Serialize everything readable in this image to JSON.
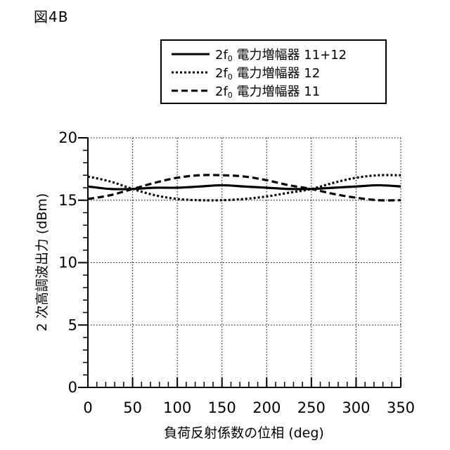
{
  "figure_label": "図4B",
  "chart_data": {
    "type": "line",
    "xlabel": "負荷反射係数の位相 (deg)",
    "ylabel": "2 次高調波出力 (dBm)",
    "xlim": [
      0,
      350
    ],
    "ylim": [
      0,
      20
    ],
    "x_ticks": [
      "0",
      "50",
      "100",
      "150",
      "200",
      "250",
      "300",
      "350"
    ],
    "y_ticks": [
      "0",
      "5",
      "10",
      "15",
      "20"
    ],
    "grid": true,
    "legend_position": "top-right",
    "x": [
      0,
      25,
      50,
      75,
      100,
      125,
      150,
      175,
      200,
      225,
      250,
      275,
      300,
      325,
      350
    ],
    "series": [
      {
        "name": "2f0 電力増幅器 11+12",
        "name_base": "2f",
        "name_sub": "0",
        "name_rest": " 電力増幅器 11+12",
        "style": "solid",
        "values": [
          16.1,
          15.9,
          15.9,
          16.0,
          16.0,
          16.1,
          16.2,
          16.1,
          16.0,
          15.9,
          15.9,
          16.0,
          16.1,
          16.2,
          16.1
        ]
      },
      {
        "name": "2f0 電力増幅器 12",
        "name_base": "2f",
        "name_sub": "0",
        "name_rest": " 電力増幅器 12",
        "style": "dotted",
        "values": [
          16.9,
          16.5,
          15.9,
          15.4,
          15.1,
          15.0,
          15.0,
          15.1,
          15.3,
          15.6,
          15.9,
          16.4,
          16.8,
          17.0,
          17.0
        ]
      },
      {
        "name": "2f0 電力増幅器 11",
        "name_base": "2f",
        "name_sub": "0",
        "name_rest": " 電力増幅器 11",
        "style": "dashed",
        "values": [
          15.1,
          15.4,
          15.9,
          16.4,
          16.8,
          17.0,
          17.0,
          16.9,
          16.6,
          16.2,
          15.9,
          15.5,
          15.2,
          15.0,
          15.0
        ]
      }
    ]
  }
}
